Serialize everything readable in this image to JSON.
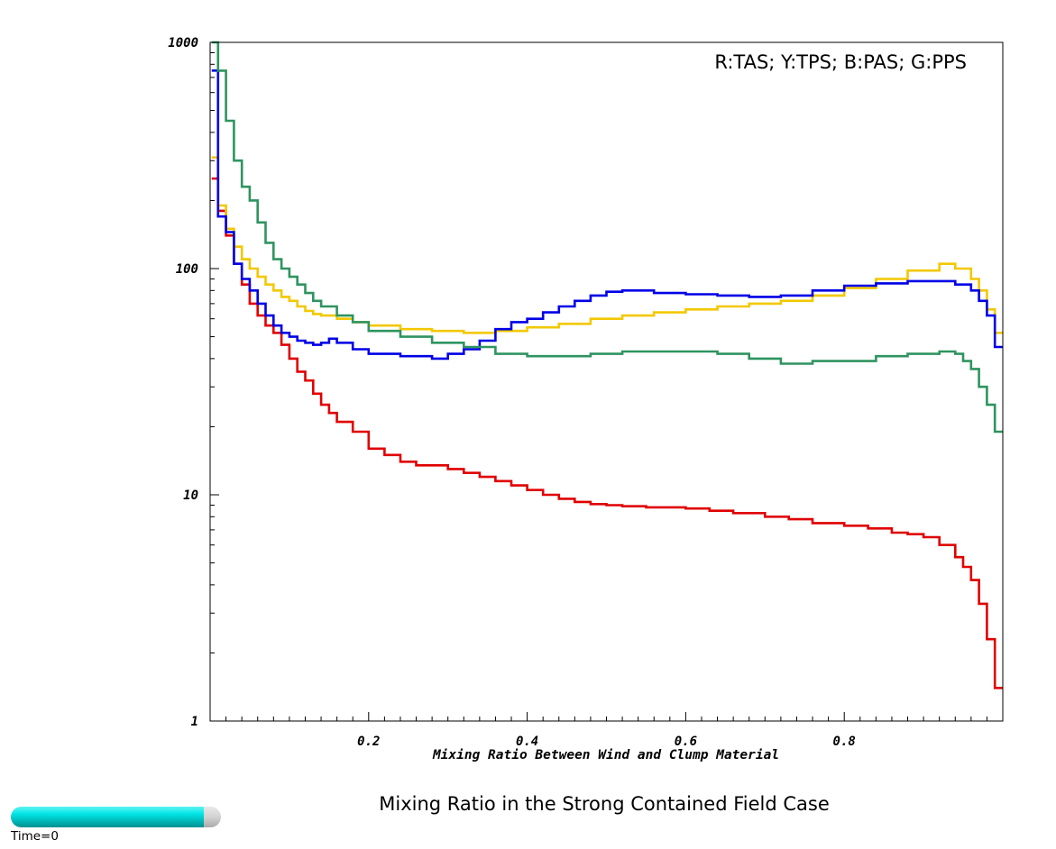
{
  "title": "Mixing Ratio in the Strong Contained Field Case",
  "time_label": "Time=0",
  "time_progress": 0.92,
  "chart_data": {
    "type": "line",
    "step": true,
    "log_y": true,
    "xlabel": "Mixing Ratio Between Wind and Clump Material",
    "ylabel": "",
    "xlim": [
      0,
      1
    ],
    "ylim": [
      1,
      1000
    ],
    "x_ticks": [
      0.2,
      0.4,
      0.6,
      0.8
    ],
    "x_tick_labels": [
      "0.2",
      "0.4",
      "0.6",
      "0.8"
    ],
    "y_ticks": [
      1,
      10,
      100,
      1000
    ],
    "y_tick_labels": [
      "1",
      "10",
      "100",
      "1000"
    ],
    "legend_text": "R:TAS; Y:TPS; B:PAS; G:PPS",
    "legend_position": "top-right",
    "grid": false,
    "series": [
      {
        "name": "TAS",
        "color": "#e00000",
        "x": [
          0.005,
          0.01,
          0.02,
          0.03,
          0.04,
          0.05,
          0.06,
          0.07,
          0.08,
          0.09,
          0.1,
          0.11,
          0.12,
          0.13,
          0.14,
          0.15,
          0.16,
          0.18,
          0.2,
          0.22,
          0.24,
          0.26,
          0.28,
          0.3,
          0.32,
          0.34,
          0.36,
          0.38,
          0.4,
          0.42,
          0.44,
          0.46,
          0.48,
          0.5,
          0.52,
          0.55,
          0.58,
          0.6,
          0.63,
          0.66,
          0.7,
          0.73,
          0.76,
          0.8,
          0.83,
          0.86,
          0.88,
          0.9,
          0.92,
          0.94,
          0.95,
          0.96,
          0.97,
          0.98,
          0.99,
          1.0
        ],
        "y": [
          250,
          180,
          140,
          105,
          85,
          70,
          62,
          56,
          52,
          46,
          40,
          35,
          32,
          28,
          25,
          23,
          21,
          19,
          16,
          15,
          14,
          13.5,
          13.5,
          13,
          12.5,
          12,
          11.5,
          11,
          10.5,
          10,
          9.6,
          9.3,
          9.1,
          9.0,
          8.9,
          8.8,
          8.8,
          8.7,
          8.5,
          8.3,
          8.0,
          7.8,
          7.5,
          7.3,
          7.1,
          6.8,
          6.7,
          6.5,
          6.0,
          5.3,
          4.8,
          4.2,
          3.3,
          2.3,
          1.4,
          1.4
        ]
      },
      {
        "name": "TPS",
        "color": "#f2c800",
        "x": [
          0.005,
          0.01,
          0.02,
          0.03,
          0.04,
          0.05,
          0.06,
          0.07,
          0.08,
          0.09,
          0.1,
          0.11,
          0.12,
          0.13,
          0.14,
          0.16,
          0.18,
          0.2,
          0.24,
          0.28,
          0.32,
          0.36,
          0.4,
          0.44,
          0.48,
          0.52,
          0.56,
          0.6,
          0.64,
          0.68,
          0.72,
          0.76,
          0.8,
          0.84,
          0.88,
          0.92,
          0.94,
          0.96,
          0.97,
          0.98,
          0.99,
          1.0
        ],
        "y": [
          310,
          190,
          150,
          125,
          110,
          100,
          92,
          85,
          80,
          75,
          72,
          68,
          65,
          63,
          62,
          60,
          58,
          56,
          54,
          53,
          52,
          53,
          55,
          57,
          60,
          62,
          64,
          66,
          68,
          70,
          72,
          76,
          82,
          90,
          98,
          105,
          100,
          90,
          80,
          66,
          52,
          52
        ]
      },
      {
        "name": "PAS",
        "color": "#0000e6",
        "x": [
          0.005,
          0.01,
          0.02,
          0.03,
          0.04,
          0.05,
          0.06,
          0.07,
          0.08,
          0.09,
          0.1,
          0.11,
          0.12,
          0.13,
          0.14,
          0.15,
          0.16,
          0.18,
          0.2,
          0.24,
          0.28,
          0.3,
          0.32,
          0.34,
          0.36,
          0.38,
          0.4,
          0.42,
          0.44,
          0.46,
          0.48,
          0.5,
          0.52,
          0.56,
          0.6,
          0.64,
          0.68,
          0.72,
          0.76,
          0.8,
          0.84,
          0.88,
          0.92,
          0.94,
          0.96,
          0.97,
          0.98,
          0.99,
          1.0
        ],
        "y": [
          750,
          170,
          145,
          105,
          90,
          80,
          70,
          62,
          56,
          52,
          50,
          48,
          47,
          46,
          47,
          49,
          47,
          44,
          42,
          41,
          40,
          42,
          44,
          48,
          54,
          58,
          60,
          64,
          68,
          72,
          76,
          79,
          80,
          78,
          77,
          76,
          75,
          76,
          80,
          84,
          86,
          88,
          88,
          85,
          80,
          72,
          62,
          45,
          45
        ]
      },
      {
        "name": "PPS",
        "color": "#2e9460",
        "x": [
          0.005,
          0.01,
          0.02,
          0.03,
          0.04,
          0.05,
          0.06,
          0.07,
          0.08,
          0.09,
          0.1,
          0.11,
          0.12,
          0.13,
          0.14,
          0.16,
          0.18,
          0.2,
          0.24,
          0.28,
          0.32,
          0.36,
          0.4,
          0.44,
          0.48,
          0.52,
          0.56,
          0.6,
          0.64,
          0.68,
          0.72,
          0.76,
          0.8,
          0.84,
          0.88,
          0.92,
          0.94,
          0.95,
          0.96,
          0.97,
          0.98,
          0.99,
          1.0
        ],
        "y": [
          1000,
          750,
          450,
          300,
          230,
          200,
          160,
          130,
          110,
          100,
          92,
          85,
          78,
          72,
          68,
          62,
          58,
          53,
          50,
          47,
          45,
          42,
          41,
          41,
          42,
          43,
          43,
          43,
          42,
          40,
          38,
          39,
          39,
          41,
          42,
          43,
          42,
          39,
          36,
          30,
          25,
          19,
          19
        ]
      }
    ]
  }
}
